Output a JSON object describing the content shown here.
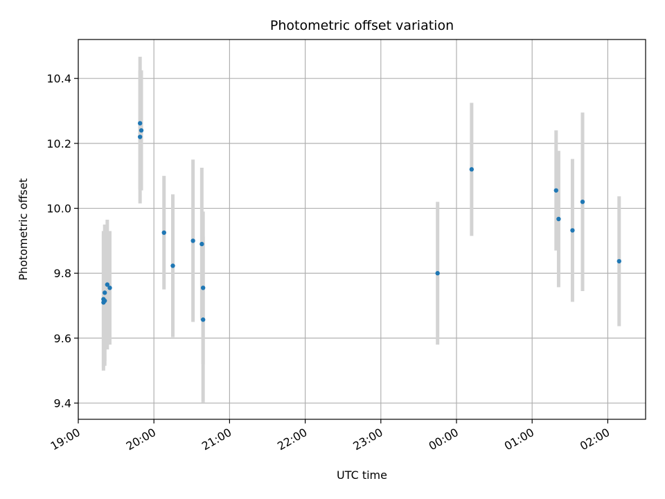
{
  "chart_data": {
    "type": "scatter",
    "title": "Photometric offset variation",
    "xlabel": "UTC time",
    "ylabel": "Photometric offset",
    "x_tick_labels": [
      "19:00",
      "20:00",
      "21:00",
      "22:00",
      "23:00",
      "00:00",
      "01:00",
      "02:00"
    ],
    "y_tick_labels": [
      "9.4",
      "9.6",
      "9.8",
      "10.0",
      "10.2",
      "10.4"
    ],
    "xlim": [
      "19:00",
      "02:30"
    ],
    "ylim": [
      9.35,
      10.52
    ],
    "grid": true,
    "marker_color": "#1f77b4",
    "errorbar_color": "#d3d3d3",
    "points": [
      {
        "x": "19:20",
        "y": 9.71,
        "err": 0.21
      },
      {
        "x": "19:20",
        "y": 9.72,
        "err": 0.21
      },
      {
        "x": "19:21",
        "y": 9.74,
        "err": 0.21
      },
      {
        "x": "19:21",
        "y": 9.715,
        "err": 0.2
      },
      {
        "x": "19:23",
        "y": 9.765,
        "err": 0.2
      },
      {
        "x": "19:25",
        "y": 9.755,
        "err": 0.175
      },
      {
        "x": "19:49",
        "y": 10.22,
        "err": 0.205
      },
      {
        "x": "19:49",
        "y": 10.262,
        "err": 0.205
      },
      {
        "x": "19:50",
        "y": 10.24,
        "err": 0.185
      },
      {
        "x": "20:08",
        "y": 9.925,
        "err": 0.175
      },
      {
        "x": "20:15",
        "y": 9.823,
        "err": 0.22
      },
      {
        "x": "20:31",
        "y": 9.9,
        "err": 0.25
      },
      {
        "x": "20:38",
        "y": 9.89,
        "err": 0.235
      },
      {
        "x": "20:39",
        "y": 9.755,
        "err": 0.235
      },
      {
        "x": "20:39",
        "y": 9.657,
        "err": 0.255
      },
      {
        "x": "23:45",
        "y": 9.8,
        "err": 0.22
      },
      {
        "x": "00:12",
        "y": 10.12,
        "err": 0.205
      },
      {
        "x": "01:19",
        "y": 10.055,
        "err": 0.185
      },
      {
        "x": "01:21",
        "y": 9.967,
        "err": 0.21
      },
      {
        "x": "01:32",
        "y": 9.932,
        "err": 0.22
      },
      {
        "x": "01:40",
        "y": 10.02,
        "err": 0.275
      },
      {
        "x": "02:09",
        "y": 9.837,
        "err": 0.2
      }
    ]
  }
}
